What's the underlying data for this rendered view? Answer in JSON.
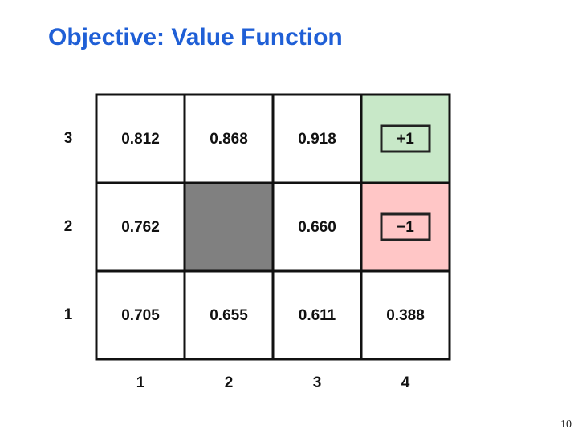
{
  "title": "Objective: Value Function",
  "grid": {
    "row_labels": [
      "3",
      "2",
      "1"
    ],
    "column_labels": [
      "1",
      "2",
      "3",
      "4"
    ],
    "rows": [
      [
        "0.812",
        "0.868",
        "0.918",
        "+1"
      ],
      [
        "0.762",
        null,
        "0.660",
        "−1"
      ],
      [
        "0.705",
        "0.655",
        "0.611",
        "0.388"
      ]
    ]
  },
  "page_number": "10"
}
